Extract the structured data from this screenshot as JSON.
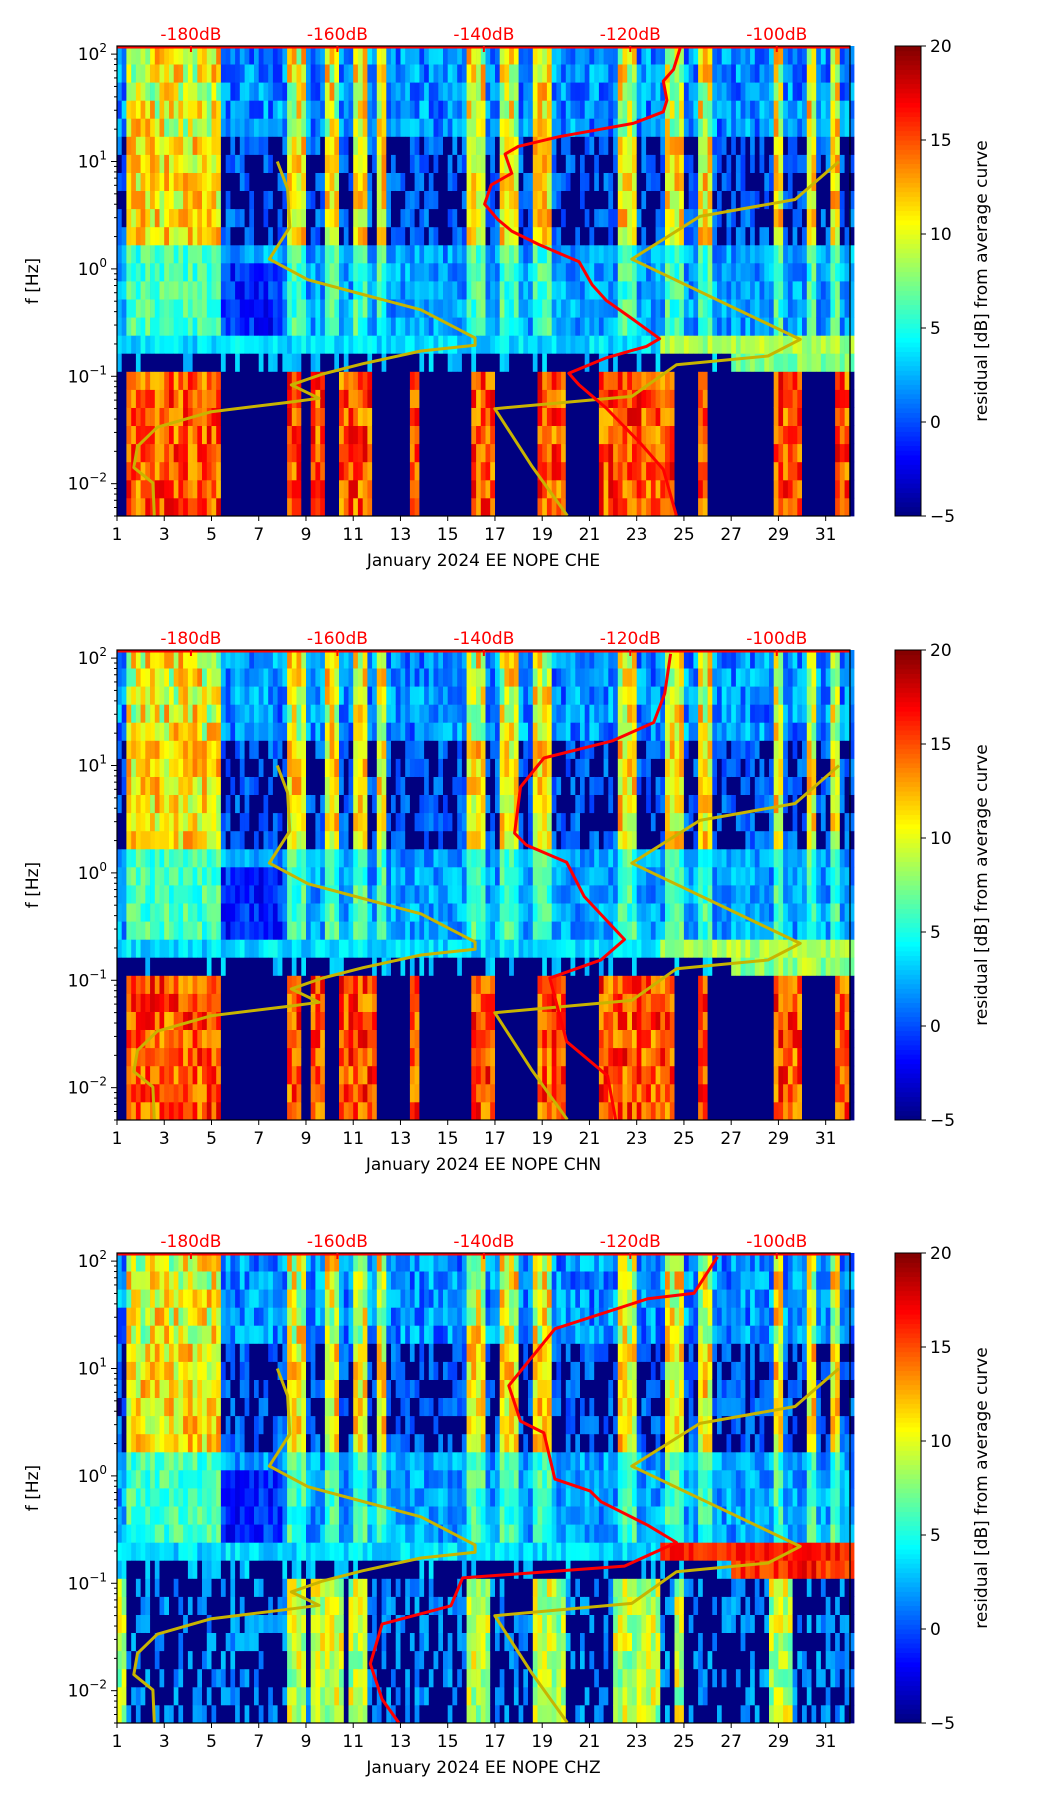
{
  "chart_data": {
    "type": "heatmap",
    "title": "",
    "colorbar": {
      "label": "residual [dB] from average curve",
      "range": [
        -5,
        20
      ],
      "ticks": [
        "20",
        "15",
        "10",
        "5",
        "0",
        "−5"
      ],
      "tick_values": [
        20,
        15,
        10,
        5,
        0,
        -5
      ],
      "colormap": "jet"
    },
    "x_axis": {
      "range": [
        1,
        32.03
      ],
      "ticks": [
        "1",
        "3",
        "5",
        "7",
        "9",
        "11",
        "13",
        "15",
        "17",
        "19",
        "21",
        "23",
        "25",
        "27",
        "29",
        "31"
      ],
      "tick_values": [
        1,
        3,
        5,
        7,
        9,
        11,
        13,
        15,
        17,
        19,
        21,
        23,
        25,
        27,
        29,
        31
      ]
    },
    "y_axis": {
      "label": "f [Hz]",
      "scale": "log",
      "range": [
        0.005,
        119
      ],
      "ticks": [
        {
          "base": "10",
          "exp": "2"
        },
        {
          "base": "10",
          "exp": "1"
        },
        {
          "base": "10",
          "exp": "0"
        },
        {
          "base": "10",
          "exp": "−1"
        },
        {
          "base": "10",
          "exp": "−2"
        }
      ],
      "tick_values": [
        100,
        10,
        1,
        0.1,
        0.01
      ]
    },
    "top_axis": {
      "labels": [
        "-180dB",
        "-160dB",
        "-140dB",
        "-120dB",
        "-100dB"
      ],
      "values": [
        -180,
        -160,
        -140,
        -120,
        -100
      ],
      "color": "#ff0000",
      "day_at_minus180": 4.13,
      "days_per_20dB": 6.2
    },
    "reference_curves": {
      "color": "#c8b400",
      "low_noise_model": {
        "db": [
          -168.2,
          -166.8,
          -166.5,
          -169.3,
          -164.0,
          -156.5,
          -148.6,
          -141.2,
          -141.2,
          -148.6,
          -156.5,
          -162.0,
          -166.3,
          -162.5,
          -166.6,
          -177.2,
          -184.6,
          -187.3,
          -187.8,
          -185.2,
          -185.0
        ],
        "log10_f": [
          1.0,
          0.747,
          0.389,
          0.091,
          -0.102,
          -0.238,
          -0.381,
          -0.643,
          -0.711,
          -0.765,
          -0.883,
          -0.979,
          -1.08,
          -1.205,
          -1.241,
          -1.33,
          -1.474,
          -1.653,
          -1.85,
          -1.993,
          -2.297
        ]
      },
      "high_noise_model": {
        "db": [
          -91.5,
          -97.5,
          -110.5,
          -119.8,
          -96.8,
          -101.2,
          -113.7,
          -119.8,
          -138.5,
          -133.5,
          -128.6
        ],
        "log10_f": [
          1.0,
          0.646,
          0.489,
          0.091,
          -0.657,
          -0.811,
          -0.893,
          -1.187,
          -1.302,
          -1.832,
          -2.297
        ]
      }
    },
    "panels": [
      {
        "xlabel": "January 2024 EE NOPE  CHE",
        "average_curve": {
          "color": "#ff0000",
          "db": [
            -113.2,
            -114.1,
            -115.5,
            -115.0,
            -115.5,
            -119.6,
            -129.8,
            -135.3,
            -137.1,
            -136.2,
            -139.0,
            -139.9,
            -138.1,
            -136.2,
            -132.5,
            -127.0,
            -125.2,
            -123.3,
            -119.6,
            -116.0,
            -117.8,
            -123.3,
            -128.4,
            -127.0,
            -123.3,
            -118.7,
            -115.5,
            -113.7
          ],
          "log10_f": [
            2.054,
            1.857,
            1.749,
            1.57,
            1.463,
            1.355,
            1.23,
            1.141,
            1.069,
            0.89,
            0.782,
            0.603,
            0.46,
            0.352,
            0.227,
            0.066,
            -0.149,
            -0.292,
            -0.471,
            -0.65,
            -0.722,
            -0.829,
            -0.972,
            -1.08,
            -1.295,
            -1.617,
            -1.867,
            -2.297
          ]
        },
        "low_band_active_days": [
          [
            1.5,
            5.5
          ],
          [
            8.3,
            8.8
          ],
          [
            9.2,
            9.8
          ],
          [
            10.3,
            11.8
          ],
          [
            13.4,
            13.7
          ],
          [
            15.9,
            17.0
          ],
          [
            18.7,
            20.0
          ],
          [
            21.4,
            24.6
          ],
          [
            25.5,
            26.0
          ],
          [
            28.8,
            30.0
          ],
          [
            31.4,
            31.9
          ]
        ],
        "high_band_active_days": [
          [
            1.5,
            5.5
          ],
          [
            8.2,
            9.0
          ],
          [
            9.8,
            10.3
          ],
          [
            11.0,
            11.6
          ],
          [
            12.0,
            12.4
          ],
          [
            15.7,
            16.6
          ],
          [
            17.2,
            17.9
          ],
          [
            18.6,
            19.3
          ],
          [
            22.2,
            23.0
          ],
          [
            24.2,
            25.0
          ],
          [
            25.5,
            26.1
          ],
          [
            28.7,
            29.2
          ],
          [
            30.1,
            30.5
          ],
          [
            31.2,
            31.5
          ]
        ],
        "microseism_level": 9
      },
      {
        "xlabel": "January 2024 EE NOPE  CHN",
        "average_curve": {
          "color": "#ff0000",
          "db": [
            -114.5,
            -115.3,
            -116.8,
            -122.4,
            -131.8,
            -135.0,
            -135.8,
            -134.2,
            -128.7,
            -126.3,
            -120.8,
            -124.0,
            -131.0,
            -128.7,
            -123.1,
            -122.0
          ],
          "log10_f": [
            2.04,
            1.67,
            1.4,
            1.23,
            1.07,
            0.8,
            0.37,
            0.26,
            0.1,
            -0.22,
            -0.62,
            -0.81,
            -0.98,
            -1.57,
            -1.89,
            -2.3
          ]
        },
        "low_band_active_days": [
          [
            1.5,
            5.5
          ],
          [
            8.3,
            8.8
          ],
          [
            9.2,
            9.8
          ],
          [
            10.3,
            11.9
          ],
          [
            13.4,
            13.7
          ],
          [
            15.9,
            17.0
          ],
          [
            18.7,
            20.0
          ],
          [
            21.4,
            24.6
          ],
          [
            25.5,
            26.0
          ],
          [
            28.8,
            30.0
          ],
          [
            31.4,
            31.9
          ]
        ],
        "high_band_active_days": [
          [
            1.5,
            5.5
          ],
          [
            8.2,
            9.0
          ],
          [
            9.8,
            10.3
          ],
          [
            11.0,
            11.6
          ],
          [
            12.0,
            12.4
          ],
          [
            15.7,
            16.6
          ],
          [
            17.2,
            17.9
          ],
          [
            18.6,
            19.3
          ],
          [
            22.2,
            23.0
          ],
          [
            24.2,
            25.0
          ],
          [
            25.5,
            26.1
          ],
          [
            28.7,
            29.2
          ],
          [
            30.1,
            30.5
          ],
          [
            31.2,
            31.5
          ]
        ],
        "microseism_level": 9
      },
      {
        "xlabel": "January 2024 EE NOPE  CHZ",
        "average_curve": {
          "color": "#ff0000",
          "db": [
            -108.1,
            -111.3,
            -117.6,
            -130.3,
            -136.6,
            -135.0,
            -131.8,
            -130.3,
            -125.5,
            -124.0,
            -117.6,
            -113.7,
            -120.8,
            -142.9,
            -144.5,
            -153.9,
            -155.5,
            -153.9,
            -151.6
          ],
          "log10_f": [
            2.04,
            1.7,
            1.65,
            1.37,
            0.84,
            0.51,
            0.4,
            -0.03,
            -0.14,
            -0.24,
            -0.46,
            -0.62,
            -0.84,
            -0.95,
            -1.21,
            -1.38,
            -1.75,
            -2.08,
            -2.3
          ]
        },
        "low_band_active_days": [
          [
            1.1,
            1.3
          ],
          [
            8.3,
            9.0
          ],
          [
            9.2,
            10.5
          ],
          [
            10.8,
            11.6
          ],
          [
            15.7,
            16.8
          ],
          [
            18.5,
            20.0
          ],
          [
            22.0,
            24.0
          ],
          [
            24.5,
            25.0
          ],
          [
            28.5,
            29.5
          ]
        ],
        "high_band_active_days": [
          [
            1.5,
            5.5
          ],
          [
            8.2,
            9.0
          ],
          [
            9.8,
            10.3
          ],
          [
            11.0,
            11.6
          ],
          [
            12.0,
            12.4
          ],
          [
            15.7,
            16.6
          ],
          [
            17.2,
            17.9
          ],
          [
            18.6,
            19.3
          ],
          [
            22.2,
            23.0
          ],
          [
            24.2,
            25.0
          ],
          [
            25.5,
            26.1
          ],
          [
            28.7,
            29.2
          ],
          [
            30.1,
            30.5
          ],
          [
            31.2,
            31.5
          ]
        ],
        "microseism_level": 17
      }
    ]
  }
}
